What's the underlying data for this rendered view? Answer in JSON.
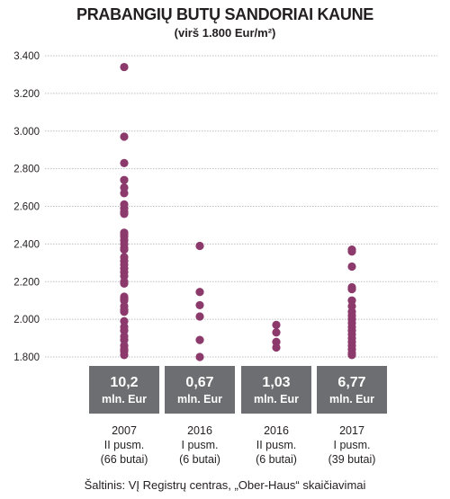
{
  "chart_data": {
    "type": "scatter",
    "title": "PRABANGIŲ BUTŲ SANDORIAI KAUNE",
    "subtitle": "(virš 1.800 Eur/m²)",
    "ylim": [
      1800,
      3400
    ],
    "yticks": [
      "1.800",
      "2.000",
      "2.200",
      "2.400",
      "2.600",
      "2.800",
      "3.000",
      "3.200",
      "3.400"
    ],
    "ytick_values": [
      1800,
      2000,
      2200,
      2400,
      2600,
      2800,
      3000,
      3200,
      3400
    ],
    "grid": true,
    "dot_color": "#8b3a6b",
    "box_color": "#6d6e71",
    "categories": [
      {
        "year": "2007",
        "period": "II pusm.",
        "count": "(66 butai)",
        "total": "10,2",
        "unit": "mln. Eur",
        "values": [
          3340,
          2970,
          2830,
          2740,
          2700,
          2670,
          2610,
          2590,
          2570,
          2560,
          2460,
          2450,
          2440,
          2420,
          2400,
          2380,
          2370,
          2330,
          2310,
          2290,
          2270,
          2250,
          2230,
          2200,
          2190,
          2120,
          2110,
          2100,
          2070,
          2050,
          2040,
          1990,
          1960,
          1940,
          1910,
          1890,
          1860,
          1840,
          1830,
          1810
        ]
      },
      {
        "year": "2016",
        "period": "I pusm.",
        "count": "(6 butai)",
        "total": "0,67",
        "unit": "mln. Eur",
        "values": [
          2390,
          2145,
          2075,
          2015,
          1890,
          1800
        ]
      },
      {
        "year": "2016",
        "period": "II pusm.",
        "count": "(6 butai)",
        "total": "1,03",
        "unit": "mln. Eur",
        "values": [
          1970,
          1930,
          1880,
          1850
        ]
      },
      {
        "year": "2017",
        "period": "I pusm.",
        "count": "(39 butai)",
        "total": "6,77",
        "unit": "mln. Eur",
        "values": [
          2370,
          2360,
          2280,
          2170,
          2160,
          2100,
          2070,
          2040,
          2020,
          2000,
          1980,
          1960,
          1940,
          1920,
          1900,
          1880,
          1860,
          1840,
          1820,
          1810
        ]
      }
    ]
  },
  "source": "Šaltinis: VĮ Registrų centras, „Ober-Haus“ skaičiavimai"
}
